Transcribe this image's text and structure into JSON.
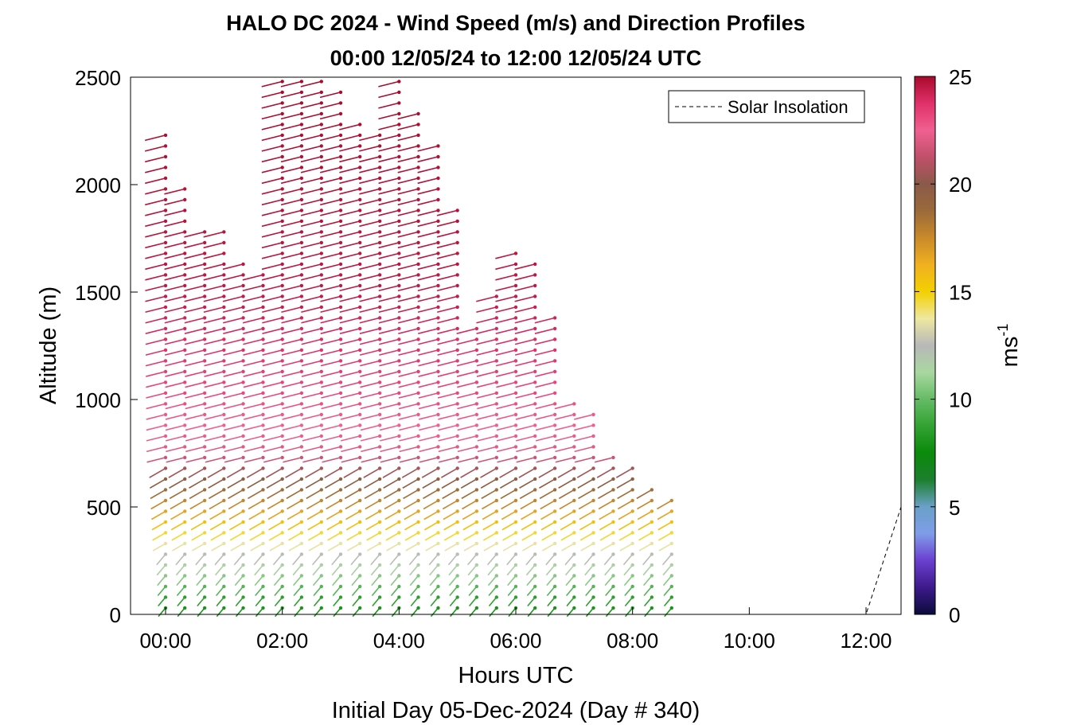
{
  "chart_data": {
    "type": "scatter",
    "plot_style": "wind barb profile (arrows colored by speed, dots at profile points)",
    "title": "HALO DC 2024 - Wind Speed (m/s) and Direction Profiles",
    "subtitle": "00:00 12/05/24 to 12:00 12/05/24  UTC",
    "xlabel": "Hours UTC",
    "xlabel2": "Initial Day 05-Dec-2024 (Day # 340)",
    "ylabel": "Altitude (m)",
    "xlim": [
      -0.6,
      12.6
    ],
    "ylim": [
      0,
      2500
    ],
    "x_ticks": [
      0,
      2,
      4,
      6,
      8,
      10,
      12
    ],
    "x_tick_labels": [
      "00:00",
      "02:00",
      "04:00",
      "06:00",
      "08:00",
      "10:00",
      "12:00"
    ],
    "y_ticks": [
      0,
      500,
      1000,
      1500,
      2000,
      2500
    ],
    "y_tick_labels": [
      "0",
      "500",
      "1000",
      "1500",
      "2000",
      "2500"
    ],
    "colorbar": {
      "range": [
        0,
        25
      ],
      "ticks": [
        0,
        5,
        10,
        15,
        20,
        25
      ],
      "tick_labels": [
        "0",
        "5",
        "10",
        "15",
        "20",
        "25"
      ],
      "label_base": "ms",
      "label_exp": "-1",
      "colors": [
        "#0b0b3b",
        "#3d1a8a",
        "#6a3fd0",
        "#7f9de8",
        "#6aa0c8",
        "#1c7f2e",
        "#0a8a0a",
        "#33a233",
        "#66bb66",
        "#a9d7a0",
        "#b8b8b8",
        "#eee8a0",
        "#f3d000",
        "#f0b020",
        "#c98a2a",
        "#9a6a3a",
        "#8a5a4a",
        "#c0506a",
        "#f06090",
        "#e0306a",
        "#a80a2a"
      ]
    },
    "legend": {
      "entries": [
        "Solar Insolation"
      ],
      "location": "top-right"
    },
    "profile_times": [
      0.0,
      0.33,
      0.67,
      1.0,
      1.33,
      1.67,
      2.0,
      2.33,
      2.67,
      3.0,
      3.33,
      3.67,
      4.0,
      4.33,
      4.67,
      5.0,
      5.33,
      5.67,
      6.0,
      6.33,
      6.67,
      7.0,
      7.33,
      7.67,
      8.0,
      8.33,
      8.67
    ],
    "profile_top_altitude": [
      2250,
      2010,
      1790,
      1790,
      1630,
      1620,
      2500,
      2500,
      2500,
      2450,
      2300,
      2250,
      2500,
      2360,
      2210,
      1920,
      1350,
      1490,
      1700,
      1630,
      1420,
      1000,
      940,
      770,
      680,
      580,
      540
    ],
    "speed_profile_by_altitude": [
      {
        "altitude": 50,
        "speed": 8
      },
      {
        "altitude": 150,
        "speed": 10
      },
      {
        "altitude": 250,
        "speed": 12
      },
      {
        "altitude": 350,
        "speed": 14
      },
      {
        "altitude": 450,
        "speed": 16
      },
      {
        "altitude": 600,
        "speed": 19
      },
      {
        "altitude": 750,
        "speed": 22
      },
      {
        "altitude": 1000,
        "speed": 23
      },
      {
        "altitude": 1500,
        "speed": 24.5
      },
      {
        "altitude": 2500,
        "speed": 25
      }
    ],
    "solar_insolation": {
      "x": [
        -0.6,
        12.0,
        12.6
      ],
      "y": [
        0,
        0,
        500
      ]
    }
  }
}
